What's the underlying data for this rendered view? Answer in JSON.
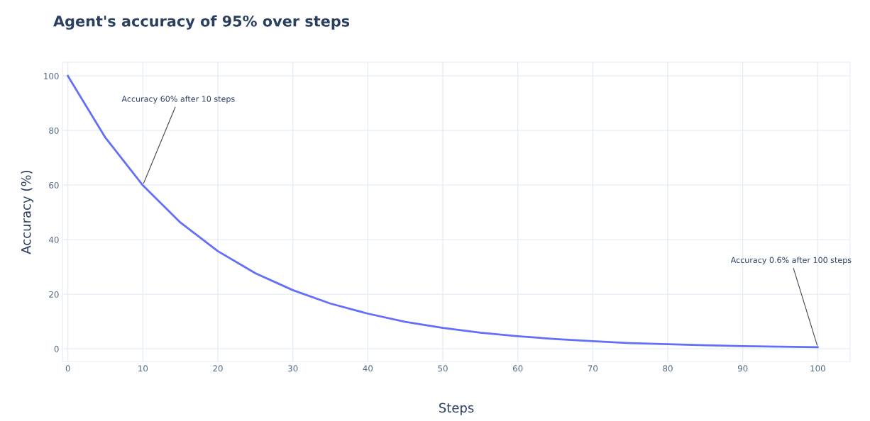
{
  "chart_data": {
    "type": "line",
    "title": "Agent's accuracy of 95% over steps",
    "xlabel": "Steps",
    "ylabel": "Accuracy (%)",
    "x": [
      0,
      5,
      10,
      15,
      20,
      25,
      30,
      35,
      40,
      45,
      50,
      55,
      60,
      65,
      70,
      75,
      80,
      85,
      90,
      95,
      100
    ],
    "series": [
      {
        "color": "#636efa",
        "values": [
          100,
          77.4,
          59.9,
          46.3,
          35.8,
          27.7,
          21.5,
          16.6,
          12.9,
          9.9,
          7.7,
          5.9,
          4.6,
          3.6,
          2.8,
          2.1,
          1.7,
          1.3,
          1.0,
          0.8,
          0.6
        ]
      }
    ],
    "xlim": [
      -0.7,
      104.3
    ],
    "ylim": [
      -4.7,
      105
    ],
    "xticks": [
      0,
      10,
      20,
      30,
      40,
      50,
      60,
      70,
      80,
      90,
      100
    ],
    "yticks": [
      0,
      20,
      40,
      60,
      80,
      100
    ],
    "grid": true,
    "marker": "none",
    "line_style": "solid",
    "annotations": [
      {
        "text": "Accuracy 60% after 10 steps",
        "x": 10,
        "y": 60
      },
      {
        "text": "Accuracy 0.6% after 100 steps",
        "x": 100,
        "y": 0.6
      }
    ]
  }
}
